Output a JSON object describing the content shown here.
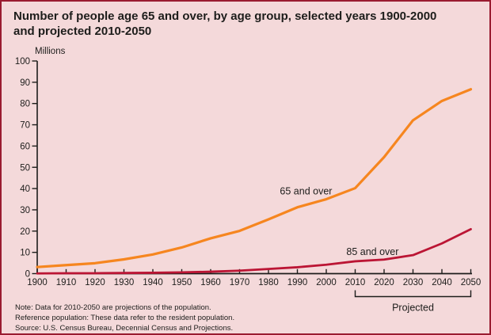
{
  "colors": {
    "background": "#f4d9da",
    "frame_border": "#9a1b30",
    "ink": "#1d1d1b",
    "series_65_color": "#f6861f",
    "series_85_color": "#bb1534"
  },
  "title": {
    "line1": "Number of people age 65 and over, by age group, selected years 1900-2000",
    "line2": "and projected 2010-2050"
  },
  "chart_data": {
    "type": "line",
    "title": "Number of people age 65 and over, by age group, selected years 1900-2000 and projected 2010-2050",
    "ylabel": "Millions",
    "xlabel": "",
    "ylim": [
      0,
      100
    ],
    "grid": false,
    "legend": "inline-labels",
    "x": [
      1900,
      1910,
      1920,
      1930,
      1940,
      1950,
      1960,
      1970,
      1980,
      1990,
      2000,
      2010,
      2020,
      2030,
      2040,
      2050
    ],
    "x_ticks": [
      1900,
      1910,
      1920,
      1930,
      1940,
      1950,
      1960,
      1970,
      1980,
      1990,
      2000,
      2010,
      2020,
      2030,
      2040,
      2050
    ],
    "y_ticks": [
      0,
      10,
      20,
      30,
      40,
      50,
      60,
      70,
      80,
      90,
      100
    ],
    "series": [
      {
        "name": "65 and over",
        "color": "#f6861f",
        "values": [
          3.1,
          4.0,
          4.9,
          6.7,
          9.0,
          12.3,
          16.6,
          20.1,
          25.5,
          31.2,
          35.0,
          40.2,
          54.8,
          72.1,
          81.2,
          86.7
        ]
      },
      {
        "name": "85 and over",
        "color": "#bb1534",
        "values": [
          0.1,
          0.2,
          0.2,
          0.3,
          0.4,
          0.6,
          0.9,
          1.4,
          2.2,
          3.0,
          4.2,
          5.8,
          6.6,
          8.7,
          14.2,
          20.9
        ]
      }
    ],
    "annotations": [
      {
        "text": "65 and over",
        "year": 1993,
        "value": 37.3
      },
      {
        "text": "85 and over",
        "year": 2016,
        "value": 8.75
      }
    ],
    "projected_bracket": {
      "label": "Projected",
      "from_year": 2010,
      "to_year": 2050
    }
  },
  "notes": [
    "Note: Data for 2010-2050 are projections of the population.",
    "Reference population: These data refer to the resident population.",
    "Source: U.S. Census Bureau, Decennial Census and Projections."
  ]
}
